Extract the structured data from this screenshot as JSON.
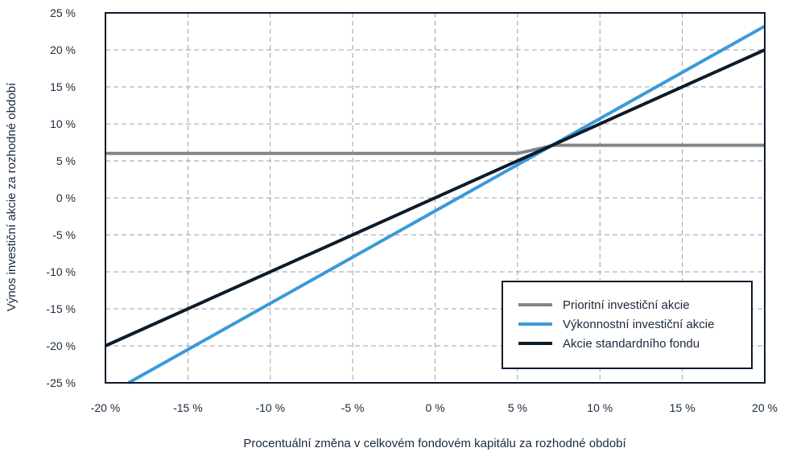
{
  "chart_data": {
    "type": "line",
    "title": "",
    "xlabel": "Procentuální změna v celkovém fondovém kapitálu za rozhodné období",
    "ylabel": "Výnos investiční akcie za rozhodné období",
    "xlim": [
      -20,
      20
    ],
    "ylim": [
      -25,
      25
    ],
    "x_ticks": [
      -20,
      -15,
      -10,
      -5,
      0,
      5,
      10,
      15,
      20
    ],
    "y_ticks": [
      25,
      20,
      15,
      10,
      5,
      0,
      -5,
      -10,
      -15,
      -20,
      -25
    ],
    "x_tick_labels": [
      "-20 %",
      "-15 %",
      "-10 %",
      "-5 %",
      "0 %",
      "5 %",
      "10 %",
      "15 %",
      "20 %"
    ],
    "y_tick_labels": [
      "25 %",
      "20 %",
      "15 %",
      "10 %",
      "5 %",
      "0 %",
      "-5 %",
      "-10 %",
      "-15 %",
      "-20 %",
      "-25 %"
    ],
    "grid": true,
    "legend_position": "bottom-right",
    "series": [
      {
        "name": "Prioritní investiční akcie",
        "color": "#808589",
        "x": [
          -20,
          5,
          7.2,
          20
        ],
        "y": [
          6,
          6,
          7.1,
          7.1
        ]
      },
      {
        "name": "Výkonnostní investiční akcie",
        "color": "#3a9ad9",
        "x": [
          -18.6,
          20
        ],
        "y": [
          -25,
          23.2
        ]
      },
      {
        "name": "Akcie standardního fondu",
        "color": "#0d1b2a",
        "x": [
          -20,
          20
        ],
        "y": [
          -20,
          20
        ]
      }
    ]
  }
}
